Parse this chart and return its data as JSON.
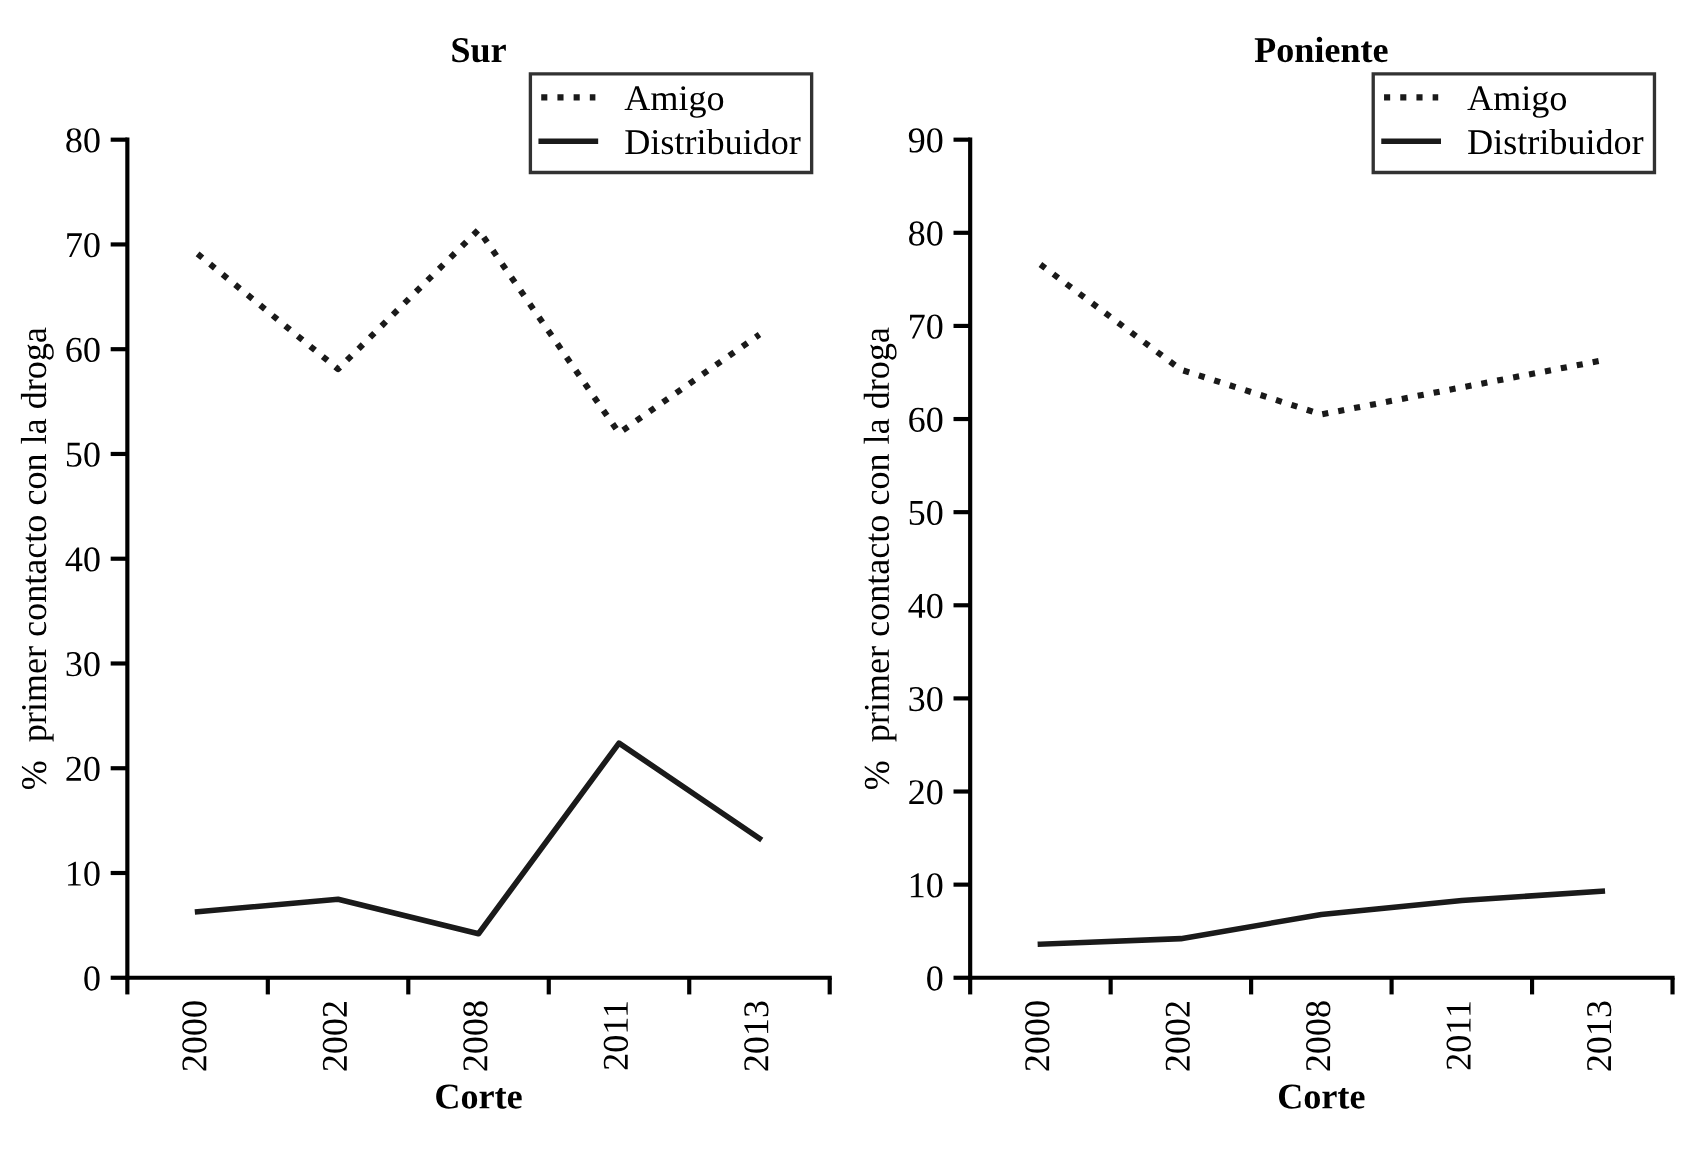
{
  "chart_data": [
    {
      "type": "line",
      "title": "Sur",
      "xlabel": "Corte",
      "ylabel": "%  primer contacto con la droga",
      "categories": [
        "2000",
        "2002",
        "2008",
        "2011",
        "2013"
      ],
      "series": [
        {
          "name": "Amigo",
          "color": "#1a1a1a",
          "line_style": "dotted",
          "values": [
            69.1,
            58.1,
            71.4,
            52.0,
            61.4
          ]
        },
        {
          "name": "Distribuidor",
          "color": "#1a1a1a",
          "line_style": "solid",
          "values": [
            6.3,
            7.5,
            4.2,
            22.4,
            13.3
          ]
        }
      ],
      "ylim": [
        0,
        80
      ],
      "yticks": [
        0,
        10,
        20,
        30,
        40,
        50,
        60,
        70,
        80
      ],
      "legend": "top right",
      "grid": false,
      "marker": "none"
    },
    {
      "type": "line",
      "title": "Poniente",
      "xlabel": "Corte",
      "ylabel": "%  primer contacto con la droga",
      "categories": [
        "2000",
        "2002",
        "2008",
        "2011",
        "2013"
      ],
      "series": [
        {
          "name": "Amigo",
          "color": "#1a1a1a",
          "line_style": "dotted",
          "values": [
            76.6,
            65.3,
            60.5,
            63.4,
            66.3
          ]
        },
        {
          "name": "Distribuidor",
          "color": "#1a1a1a",
          "line_style": "solid",
          "values": [
            3.6,
            4.2,
            6.8,
            8.3,
            9.3
          ]
        }
      ],
      "ylim": [
        0,
        90
      ],
      "yticks": [
        0,
        10,
        20,
        30,
        40,
        50,
        60,
        70,
        80,
        90
      ],
      "legend": "top right",
      "grid": false,
      "marker": "none"
    }
  ]
}
